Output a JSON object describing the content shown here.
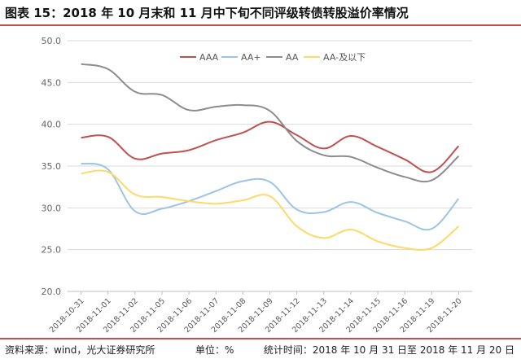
{
  "title": "图表 15：2018 年 10 月末和 11 月中下旬不同评级转债转股溢价率情况",
  "footer": {
    "source": "资料来源：wind，光大证券研究所",
    "unit": "单位：%",
    "time": "统计时间：2018 年 10 月 31 日至 2018 年 11 月 20 日"
  },
  "chart_data": {
    "type": "line",
    "categories": [
      "2018-10-31",
      "2018-11-01",
      "2018-11-02",
      "2018-11-05",
      "2018-11-06",
      "2018-11-07",
      "2018-11-08",
      "2018-11-09",
      "2018-11-12",
      "2018-11-13",
      "2018-11-14",
      "2018-11-15",
      "2018-11-16",
      "2018-11-19",
      "2018-11-20"
    ],
    "yticks": [
      "50.0",
      "45.0",
      "40.0",
      "35.0",
      "30.0",
      "25.0",
      "20.0"
    ],
    "ylim": [
      20,
      50
    ],
    "grid": true,
    "legend_position": "top-center",
    "series": [
      {
        "name": "AAA",
        "color": "#c0504d",
        "values": [
          38.4,
          38.5,
          35.9,
          36.5,
          36.9,
          38.1,
          39.0,
          40.3,
          38.7,
          37.1,
          38.6,
          37.3,
          35.8,
          34.3,
          37.4
        ]
      },
      {
        "name": "AA+",
        "color": "#9dc3e6",
        "values": [
          35.3,
          34.6,
          29.6,
          29.9,
          30.8,
          32.0,
          33.2,
          33.1,
          29.8,
          29.5,
          30.7,
          29.4,
          28.4,
          27.5,
          31.1
        ]
      },
      {
        "name": "AA",
        "color": "#8c8c8c",
        "values": [
          47.2,
          46.6,
          43.9,
          43.5,
          41.7,
          42.1,
          42.3,
          41.6,
          38.0,
          36.3,
          36.1,
          34.8,
          33.7,
          33.3,
          36.2
        ]
      },
      {
        "name": "AA-及以下",
        "color": "#ffd966",
        "values": [
          34.1,
          34.3,
          31.6,
          31.3,
          30.8,
          30.5,
          30.9,
          31.4,
          27.8,
          26.4,
          27.4,
          26.0,
          25.2,
          25.2,
          27.8
        ]
      }
    ]
  }
}
